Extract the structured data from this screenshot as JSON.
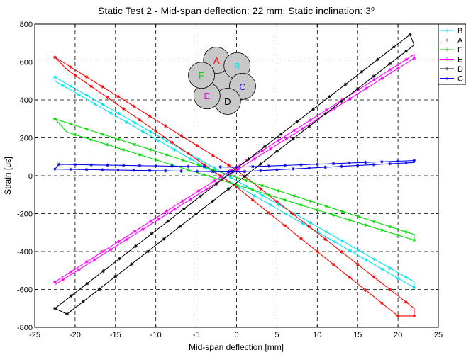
{
  "chart_data": {
    "type": "line",
    "title": "Static Test 2 - Mid-span deflection: 22 mm; Static inclination: 3",
    "title_superscript": "o",
    "xlabel": "Mid-span deflection [mm]",
    "ylabel": "Strain [με]",
    "xlim": [
      -25,
      25
    ],
    "ylim": [
      -800,
      800
    ],
    "xticks": [
      -25,
      -20,
      -15,
      -10,
      -5,
      0,
      5,
      10,
      15,
      20,
      25
    ],
    "yticks": [
      -800,
      -600,
      -400,
      -200,
      0,
      200,
      400,
      600,
      800
    ],
    "grid": true,
    "legend_position": "right",
    "series": [
      {
        "name": "B",
        "color": "#00e5ee",
        "marker": "asterisk",
        "upper": [
          [
            -22.5,
            520
          ],
          [
            22,
            -560
          ]
        ],
        "lower": [
          [
            -22.5,
            500
          ],
          [
            22,
            -590
          ]
        ]
      },
      {
        "name": "A",
        "color": "#ff0000",
        "marker": "asterisk",
        "upper": [
          [
            -22.5,
            625
          ],
          [
            0,
            30
          ],
          [
            22,
            -700
          ]
        ],
        "lower": [
          [
            -21,
            560
          ],
          [
            0,
            -60
          ],
          [
            20,
            -740
          ],
          [
            22,
            -740
          ]
        ]
      },
      {
        "name": "F",
        "color": "#00dd00",
        "marker": "asterisk",
        "upper": [
          [
            -22.5,
            300
          ],
          [
            22,
            -310
          ]
        ],
        "lower": [
          [
            -21,
            230
          ],
          [
            22,
            -340
          ]
        ]
      },
      {
        "name": "E",
        "color": "#ff00ff",
        "marker": "asterisk",
        "upper": [
          [
            -22.5,
            -560
          ],
          [
            22,
            640
          ]
        ],
        "lower": [
          [
            -22.5,
            -575
          ],
          [
            22,
            620
          ]
        ]
      },
      {
        "name": "D",
        "color": "#000000",
        "marker": "asterisk",
        "upper": [
          [
            -22.5,
            -700
          ],
          [
            21.5,
            745
          ]
        ],
        "lower": [
          [
            -21,
            -730
          ],
          [
            22,
            690
          ]
        ]
      },
      {
        "name": "C",
        "color": "#0000ee",
        "marker": "asterisk",
        "upper": [
          [
            -22,
            60
          ],
          [
            0,
            45
          ],
          [
            22,
            80
          ]
        ],
        "lower": [
          [
            -22.5,
            35
          ],
          [
            0,
            20
          ],
          [
            22,
            70
          ]
        ]
      }
    ],
    "inset_wires": [
      {
        "label": "A",
        "color": "#ff0000"
      },
      {
        "label": "B",
        "color": "#00e5ee"
      },
      {
        "label": "C",
        "color": "#0000ee"
      },
      {
        "label": "D",
        "color": "#000000"
      },
      {
        "label": "E",
        "color": "#ff00ff"
      },
      {
        "label": "F",
        "color": "#00dd00"
      }
    ]
  }
}
